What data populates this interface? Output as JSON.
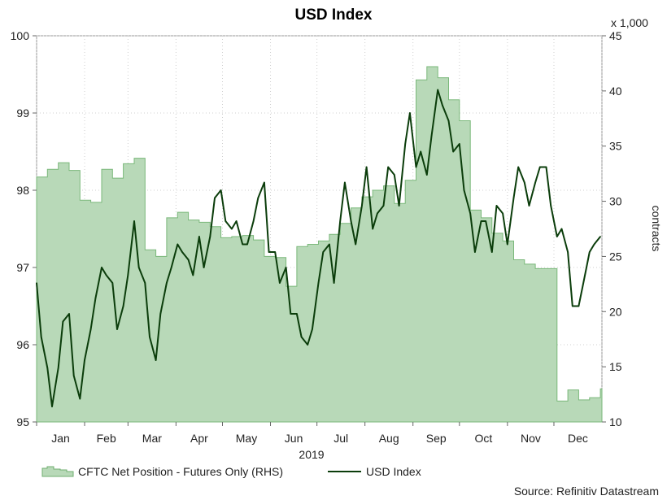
{
  "chart_data": {
    "type": "line",
    "title": "USD Index",
    "year_label": "2019",
    "multiplier_label": "x 1,000",
    "right_axis_label": "contracts",
    "source": "Source: Refinitiv Datastream",
    "x_tick_labels": [
      "Jan",
      "Feb",
      "Mar",
      "Apr",
      "May",
      "Jun",
      "Jul",
      "Aug",
      "Sep",
      "Oct",
      "Nov",
      "Dec"
    ],
    "y_left": {
      "min": 95,
      "max": 100,
      "ticks": [
        95,
        96,
        97,
        98,
        99,
        100
      ]
    },
    "y_right": {
      "min": 10,
      "max": 45,
      "ticks": [
        10,
        15,
        20,
        25,
        30,
        35,
        40,
        45
      ]
    },
    "grid": true,
    "legend_position": "bottom-left",
    "series": [
      {
        "name": "CFTC Net Position - Futures Only (RHS)",
        "type": "area",
        "axis": "right",
        "color": "#7ab87a",
        "fill": "#b8d9b8",
        "x": [
          "2019-01-01",
          "2019-01-08",
          "2019-01-15",
          "2019-01-22",
          "2019-01-29",
          "2019-02-05",
          "2019-02-12",
          "2019-02-19",
          "2019-02-26",
          "2019-03-05",
          "2019-03-12",
          "2019-03-19",
          "2019-03-26",
          "2019-04-02",
          "2019-04-09",
          "2019-04-16",
          "2019-04-23",
          "2019-04-30",
          "2019-05-07",
          "2019-05-14",
          "2019-05-21",
          "2019-05-28",
          "2019-06-04",
          "2019-06-11",
          "2019-06-18",
          "2019-06-25",
          "2019-07-02",
          "2019-07-09",
          "2019-07-16",
          "2019-07-23",
          "2019-07-30",
          "2019-08-06",
          "2019-08-13",
          "2019-08-20",
          "2019-08-27",
          "2019-09-03",
          "2019-09-10",
          "2019-09-17",
          "2019-09-24",
          "2019-10-01",
          "2019-10-08",
          "2019-10-15",
          "2019-10-22",
          "2019-10-29",
          "2019-11-05",
          "2019-11-12",
          "2019-11-19",
          "2019-11-26",
          "2019-12-03",
          "2019-12-10",
          "2019-12-17",
          "2019-12-24",
          "2019-12-31"
        ],
        "values": [
          32.2,
          32.9,
          33.5,
          32.8,
          30.1,
          29.9,
          32.9,
          32.1,
          33.4,
          33.9,
          25.6,
          25.0,
          28.5,
          29.0,
          28.3,
          28.1,
          27.7,
          26.7,
          26.8,
          26.9,
          26.5,
          25.0,
          24.9,
          22.3,
          25.9,
          26.1,
          26.4,
          27.0,
          28.0,
          29.4,
          30.4,
          31.0,
          31.4,
          29.8,
          31.9,
          41.0,
          42.2,
          41.2,
          39.2,
          37.3,
          29.2,
          28.5,
          27.1,
          26.4,
          24.7,
          24.3,
          23.9,
          23.9,
          11.9,
          12.9,
          12.0,
          12.2,
          13.0
        ]
      },
      {
        "name": "USD Index",
        "type": "line",
        "axis": "left",
        "color": "#0b3d0b",
        "x": [
          "2019-01-01",
          "2019-01-04",
          "2019-01-08",
          "2019-01-11",
          "2019-01-15",
          "2019-01-18",
          "2019-01-22",
          "2019-01-25",
          "2019-01-29",
          "2019-02-01",
          "2019-02-05",
          "2019-02-08",
          "2019-02-12",
          "2019-02-15",
          "2019-02-19",
          "2019-02-22",
          "2019-02-26",
          "2019-03-01",
          "2019-03-05",
          "2019-03-08",
          "2019-03-12",
          "2019-03-15",
          "2019-03-19",
          "2019-03-22",
          "2019-03-26",
          "2019-03-29",
          "2019-04-02",
          "2019-04-05",
          "2019-04-09",
          "2019-04-12",
          "2019-04-16",
          "2019-04-19",
          "2019-04-23",
          "2019-04-26",
          "2019-04-30",
          "2019-05-03",
          "2019-05-07",
          "2019-05-10",
          "2019-05-14",
          "2019-05-17",
          "2019-05-21",
          "2019-05-24",
          "2019-05-28",
          "2019-05-31",
          "2019-06-04",
          "2019-06-07",
          "2019-06-11",
          "2019-06-14",
          "2019-06-18",
          "2019-06-21",
          "2019-06-25",
          "2019-06-28",
          "2019-07-02",
          "2019-07-05",
          "2019-07-09",
          "2019-07-12",
          "2019-07-16",
          "2019-07-19",
          "2019-07-23",
          "2019-07-26",
          "2019-07-30",
          "2019-08-02",
          "2019-08-06",
          "2019-08-09",
          "2019-08-13",
          "2019-08-16",
          "2019-08-20",
          "2019-08-23",
          "2019-08-27",
          "2019-08-30",
          "2019-09-03",
          "2019-09-06",
          "2019-09-10",
          "2019-09-13",
          "2019-09-17",
          "2019-09-20",
          "2019-09-24",
          "2019-09-27",
          "2019-10-01",
          "2019-10-04",
          "2019-10-08",
          "2019-10-11",
          "2019-10-15",
          "2019-10-18",
          "2019-10-22",
          "2019-10-25",
          "2019-10-29",
          "2019-11-01",
          "2019-11-05",
          "2019-11-08",
          "2019-11-12",
          "2019-11-15",
          "2019-11-19",
          "2019-11-22",
          "2019-11-26",
          "2019-11-29",
          "2019-12-03",
          "2019-12-06",
          "2019-12-10",
          "2019-12-13",
          "2019-12-17",
          "2019-12-20",
          "2019-12-24",
          "2019-12-27",
          "2019-12-31"
        ],
        "values": [
          96.8,
          96.1,
          95.7,
          95.2,
          95.7,
          96.3,
          96.4,
          95.6,
          95.3,
          95.8,
          96.2,
          96.6,
          97.0,
          96.9,
          96.8,
          96.2,
          96.5,
          96.9,
          97.6,
          97.0,
          96.8,
          96.1,
          95.8,
          96.4,
          96.8,
          97.0,
          97.3,
          97.2,
          97.1,
          96.9,
          97.4,
          97.0,
          97.4,
          97.9,
          98.0,
          97.6,
          97.5,
          97.6,
          97.3,
          97.3,
          97.6,
          97.9,
          98.1,
          97.2,
          97.2,
          96.8,
          97.0,
          96.4,
          96.4,
          96.1,
          96.0,
          96.2,
          96.8,
          97.2,
          97.3,
          96.8,
          97.6,
          98.1,
          97.6,
          97.3,
          97.8,
          98.3,
          97.5,
          97.7,
          97.8,
          98.3,
          98.2,
          97.8,
          98.6,
          99.0,
          98.3,
          98.5,
          98.2,
          98.7,
          99.3,
          99.1,
          98.9,
          98.5,
          98.6,
          98.0,
          97.7,
          97.2,
          97.6,
          97.6,
          97.2,
          97.8,
          97.7,
          97.3,
          97.9,
          98.3,
          98.1,
          97.8,
          98.1,
          98.3,
          98.3,
          97.8,
          97.4,
          97.5,
          97.2,
          96.5,
          96.5,
          96.8,
          97.2,
          97.3,
          97.4
        ]
      }
    ]
  }
}
